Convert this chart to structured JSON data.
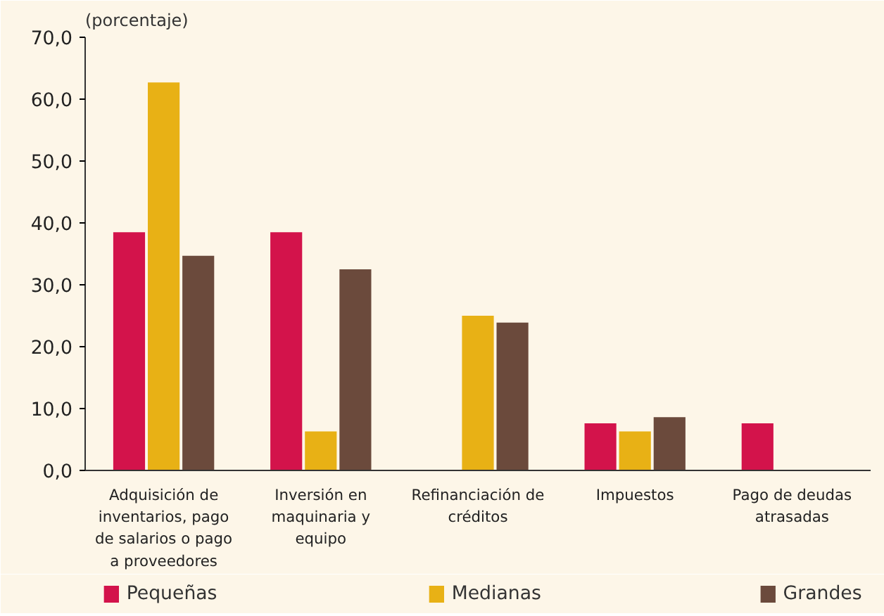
{
  "chart_data": {
    "type": "bar",
    "ylabel": "(porcentaje)",
    "categories": [
      "Adquisición de inventarios, pago de salarios o pago a proveedores",
      "Inversión en maquinaria y equipo",
      "Refinanciación de créditos",
      "Impuestos",
      "Pago de deudas atrasadas"
    ],
    "series": [
      {
        "name": "Pequeñas",
        "color": "#d3134b",
        "values": [
          38.5,
          38.5,
          null,
          7.6,
          7.6
        ]
      },
      {
        "name": "Medianas",
        "color": "#e8b115",
        "values": [
          62.7,
          6.3,
          25.0,
          6.3,
          null
        ]
      },
      {
        "name": "Grandes",
        "color": "#6b4a3c",
        "values": [
          34.7,
          32.5,
          23.9,
          8.6,
          null
        ]
      }
    ],
    "ylim": [
      0,
      70
    ],
    "yticks": [
      {
        "value": 0,
        "label": "0,0"
      },
      {
        "value": 10,
        "label": "10,0"
      },
      {
        "value": 20,
        "label": "20,0"
      },
      {
        "value": 30,
        "label": "30,0"
      },
      {
        "value": 40,
        "label": "40,0"
      },
      {
        "value": 50,
        "label": "50,0"
      },
      {
        "value": 60,
        "label": "60,0"
      },
      {
        "value": 70,
        "label": "70,0"
      }
    ],
    "grid": false,
    "legend": "bottom"
  }
}
